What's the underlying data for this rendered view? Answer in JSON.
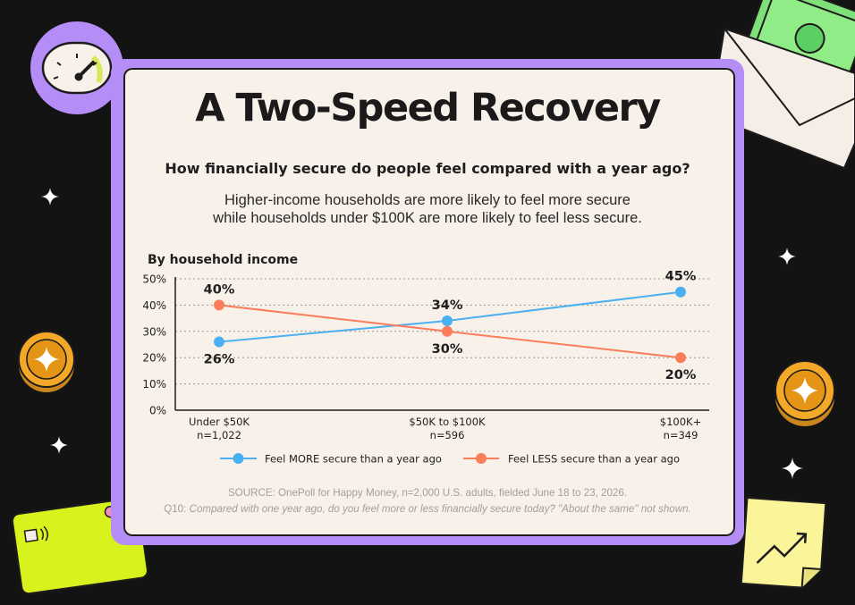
{
  "header": {
    "title": "A Two-Speed Recovery",
    "subtitle": "How financially secure do people feel compared with a year ago?",
    "description_line1": "Higher-income households are more likely to feel more secure",
    "description_line2": "while households under $100K are more likely to feel less secure."
  },
  "footer": {
    "source_line": "SOURCE: OnePoll for Happy Money, n=2,000 U.S. adults, fielded June 18 to 23, 2026.",
    "question_id": "Q10:",
    "question_text": "Compared with one year ago, do you feel more or less financially secure today? \"About the same\" not shown."
  },
  "colors": {
    "more_series": "#4bb0f2",
    "less_series": "#fb7d59",
    "frame": "#b48ef6",
    "panel": "#f8f1ea",
    "background": "#141313"
  },
  "decorations": [
    "speedometer-gauge",
    "cash-envelope",
    "gold-coin-left",
    "gold-coin-right",
    "credit-card",
    "sticky-note-trend-arrow",
    "sparkle-star"
  ],
  "chart_data": {
    "type": "line",
    "title": "By household income",
    "categories": [
      "Under $50K",
      "$50K to $100K",
      "$100K+"
    ],
    "category_sublabels": [
      "n=1,022",
      "n=596",
      "n=349"
    ],
    "series": [
      {
        "name": "Feel MORE secure than a year ago",
        "values": [
          26,
          34,
          45
        ],
        "labels": [
          "26%",
          "34%",
          "45%"
        ]
      },
      {
        "name": "Feel LESS secure than a year ago",
        "values": [
          40,
          30,
          20
        ],
        "labels": [
          "40%",
          "30%",
          "20%"
        ]
      }
    ],
    "ylim": [
      0,
      50
    ],
    "yticks": [
      0,
      10,
      20,
      30,
      40,
      50
    ],
    "ytick_labels": [
      "0%",
      "10%",
      "20%",
      "30%",
      "40%",
      "50%"
    ],
    "grid": true,
    "legend_position": "bottom"
  }
}
